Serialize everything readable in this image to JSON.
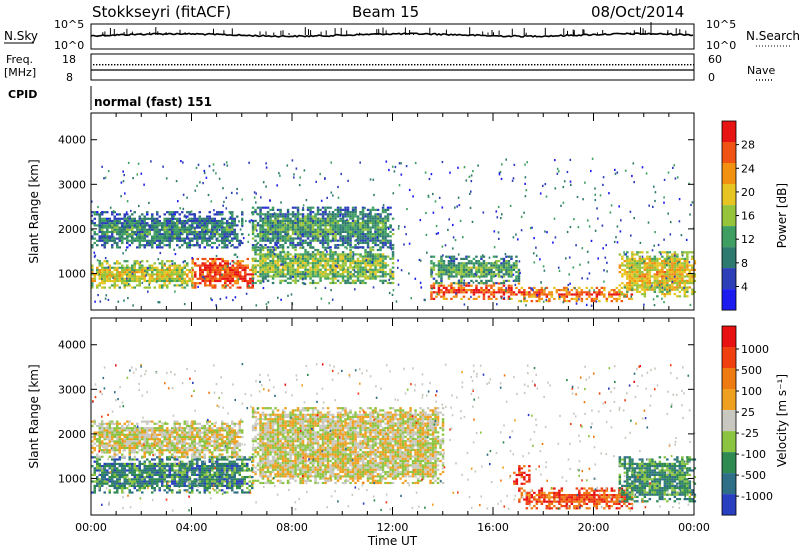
{
  "header": {
    "station": "Stokkseyri (fitACF)",
    "beam": "Beam 15",
    "date": "08/Oct/2014"
  },
  "strips": {
    "nsky_label": "N.Sky",
    "nsearch_label": "N.Search",
    "nsky_ticks": [
      "10^5",
      "10^0"
    ],
    "nsearch_ticks": [
      "10^5",
      "10^0"
    ],
    "freq_label_1": "Freq.",
    "freq_label_2": "[MHz]",
    "freq_ticks": [
      "18",
      "8"
    ],
    "nave_label": "Nave",
    "nave_ticks": [
      "60",
      "0"
    ],
    "cpid_label": "CPID",
    "cpid_value": "normal (fast) 151"
  },
  "colors": {
    "power": [
      "#1c1cf0",
      "#2c3eb8",
      "#2f7a6e",
      "#3f9f62",
      "#95c33a",
      "#e6c522",
      "#f29012",
      "#f05314",
      "#e81414"
    ],
    "velocity": [
      "#2a3ec0",
      "#2e6e86",
      "#2f8a52",
      "#8ac440",
      "#c8c8c0",
      "#f0a020",
      "#ee7a12",
      "#f04010",
      "#e81010"
    ]
  },
  "chart_data": [
    {
      "type": "heatmap",
      "name": "power-panel",
      "xlabel": "",
      "ylabel": "Slant Range [km]",
      "xlim": [
        0,
        24
      ],
      "ylim": [
        180,
        4600
      ],
      "y_ticks": [
        "1000",
        "2000",
        "3000",
        "4000"
      ],
      "colorbar": {
        "label": "Power [dB]",
        "ticks": [
          "4",
          "8",
          "12",
          "16",
          "20",
          "24",
          "28"
        ],
        "range": [
          0,
          32
        ]
      },
      "regions": [
        {
          "t": [
            0,
            4
          ],
          "r": [
            700,
            1300
          ],
          "level": 0.55
        },
        {
          "t": [
            4,
            6.4
          ],
          "r": [
            700,
            1350
          ],
          "level": 0.9
        },
        {
          "t": [
            0,
            6
          ],
          "r": [
            1600,
            2400
          ],
          "level": 0.25
        },
        {
          "t": [
            6.4,
            12
          ],
          "r": [
            800,
            1600
          ],
          "level": 0.45
        },
        {
          "t": [
            6.4,
            12
          ],
          "r": [
            1600,
            2500
          ],
          "level": 0.3
        },
        {
          "t": [
            13.5,
            17
          ],
          "r": [
            450,
            800
          ],
          "level": 0.85
        },
        {
          "t": [
            13.5,
            17
          ],
          "r": [
            800,
            1400
          ],
          "level": 0.35
        },
        {
          "t": [
            17,
            21.5
          ],
          "r": [
            400,
            700
          ],
          "level": 0.8
        },
        {
          "t": [
            21,
            24
          ],
          "r": [
            500,
            1500
          ],
          "level": 0.6
        }
      ]
    },
    {
      "type": "heatmap",
      "name": "velocity-panel",
      "xlabel": "Time UT",
      "ylabel": "Slant Range [km]",
      "xlim": [
        0,
        24
      ],
      "ylim": [
        180,
        4600
      ],
      "x_ticks": [
        "00:00",
        "04:00",
        "08:00",
        "12:00",
        "16:00",
        "20:00",
        "00:00"
      ],
      "y_ticks": [
        "1000",
        "2000",
        "3000",
        "4000"
      ],
      "colorbar": {
        "label": "Velocity [m s^-1]",
        "ticks": [
          "1000",
          "500",
          "100",
          "25",
          "-25",
          "-100",
          "-500",
          "-1000"
        ]
      },
      "regions": [
        {
          "t": [
            0,
            6.4
          ],
          "r": [
            700,
            1500
          ],
          "level": 0.2
        },
        {
          "t": [
            0,
            6
          ],
          "r": [
            1500,
            2300
          ],
          "level": 0.5
        },
        {
          "t": [
            6.4,
            14
          ],
          "r": [
            900,
            2600
          ],
          "level": 0.5
        },
        {
          "t": [
            17,
            21.5
          ],
          "r": [
            350,
            800
          ],
          "level": 0.85
        },
        {
          "t": [
            16.8,
            17.4
          ],
          "r": [
            900,
            1300
          ],
          "level": 0.95
        },
        {
          "t": [
            21,
            24
          ],
          "r": [
            500,
            1500
          ],
          "level": 0.25
        }
      ]
    }
  ]
}
